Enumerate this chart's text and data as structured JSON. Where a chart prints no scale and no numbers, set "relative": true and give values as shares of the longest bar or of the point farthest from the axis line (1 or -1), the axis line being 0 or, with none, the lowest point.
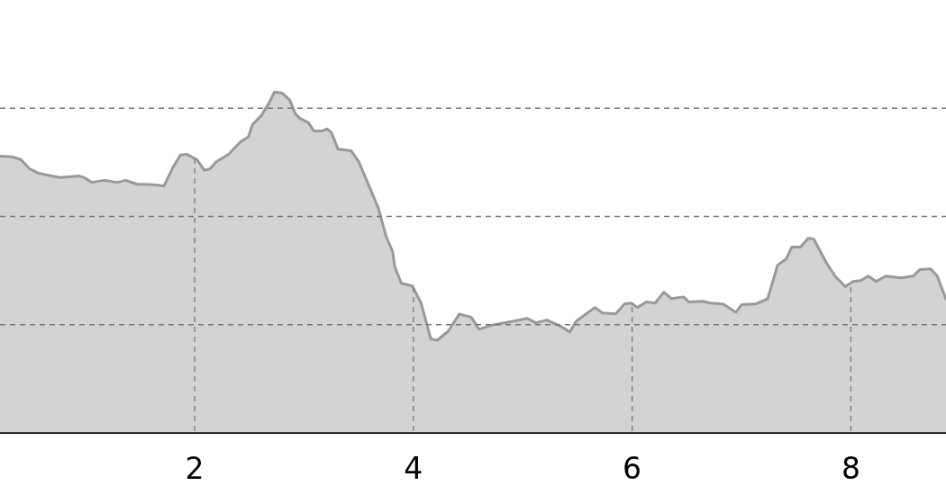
{
  "chart_data": {
    "type": "area",
    "relative": true,
    "color": "#999999",
    "grid": true,
    "xlim": [
      0.22,
      8.87
    ],
    "xticks": [
      2,
      4,
      6,
      8
    ],
    "x": [
      0.22,
      0.33,
      0.41,
      0.49,
      0.57,
      0.69,
      0.77,
      0.94,
      0.99,
      1.06,
      1.17,
      1.29,
      1.37,
      1.47,
      1.62,
      1.72,
      1.8,
      1.87,
      1.93,
      2.02,
      2.09,
      2.14,
      2.2,
      2.31,
      2.42,
      2.49,
      2.53,
      2.61,
      2.68,
      2.73,
      2.8,
      2.87,
      2.92,
      2.96,
      3.04,
      3.09,
      3.17,
      3.21,
      3.25,
      3.31,
      3.43,
      3.5,
      3.57,
      3.68,
      3.75,
      3.81,
      3.83,
      3.89,
      3.99,
      4.07,
      4.16,
      4.22,
      4.32,
      4.42,
      4.53,
      4.6,
      4.73,
      4.92,
      5.04,
      5.12,
      5.22,
      5.35,
      5.43,
      5.49,
      5.66,
      5.73,
      5.85,
      5.93,
      5.99,
      6.05,
      6.13,
      6.21,
      6.29,
      6.36,
      6.47,
      6.52,
      6.65,
      6.71,
      6.83,
      6.95,
      7.0,
      7.13,
      7.24,
      7.33,
      7.41,
      7.46,
      7.54,
      7.61,
      7.66,
      7.78,
      7.86,
      7.95,
      8.02,
      8.09,
      8.16,
      8.23,
      8.32,
      8.46,
      8.57,
      8.63,
      8.73,
      8.79,
      8.87
    ],
    "values": [
      0.812,
      0.81,
      0.802,
      0.775,
      0.762,
      0.754,
      0.749,
      0.754,
      0.749,
      0.735,
      0.741,
      0.735,
      0.741,
      0.73,
      0.728,
      0.725,
      0.778,
      0.815,
      0.817,
      0.802,
      0.77,
      0.775,
      0.796,
      0.817,
      0.854,
      0.868,
      0.905,
      0.931,
      0.968,
      1,
      0.997,
      0.976,
      0.937,
      0.923,
      0.91,
      0.886,
      0.886,
      0.892,
      0.881,
      0.833,
      0.828,
      0.796,
      0.743,
      0.659,
      0.577,
      0.532,
      0.487,
      0.439,
      0.431,
      0.381,
      0.275,
      0.272,
      0.299,
      0.349,
      0.339,
      0.304,
      0.317,
      0.328,
      0.336,
      0.323,
      0.331,
      0.312,
      0.296,
      0.328,
      0.368,
      0.352,
      0.349,
      0.378,
      0.381,
      0.368,
      0.384,
      0.381,
      0.413,
      0.394,
      0.399,
      0.384,
      0.386,
      0.381,
      0.378,
      0.354,
      0.376,
      0.378,
      0.394,
      0.492,
      0.511,
      0.545,
      0.545,
      0.571,
      0.569,
      0.497,
      0.458,
      0.429,
      0.444,
      0.447,
      0.46,
      0.444,
      0.46,
      0.455,
      0.46,
      0.479,
      0.481,
      0.46,
      0.392
    ]
  }
}
